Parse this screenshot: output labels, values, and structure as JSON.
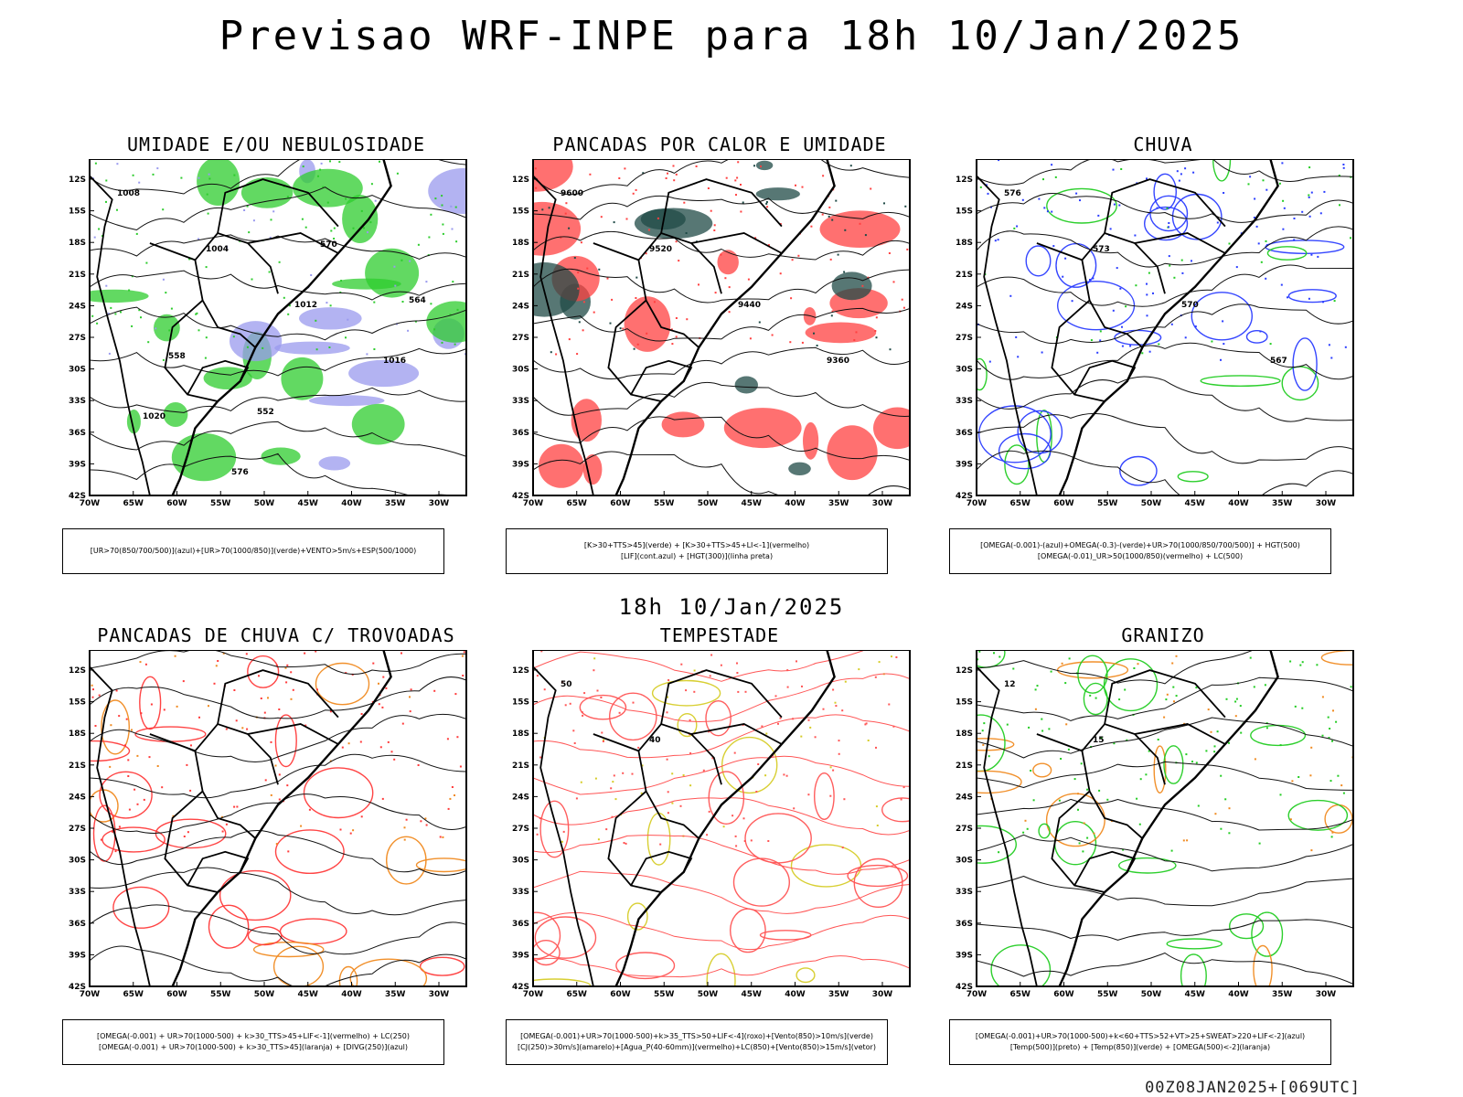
{
  "title": "Previsao WRF-INPE  para 18h 10/Jan/2025",
  "mid_title": "18h 10/Jan/2025",
  "footer": "00Z08JAN2025+[069UTC]",
  "axes": {
    "lat_labels": [
      "12S",
      "15S",
      "18S",
      "21S",
      "24S",
      "27S",
      "30S",
      "33S",
      "36S",
      "39S",
      "42S"
    ],
    "lon_labels": [
      "70W",
      "65W",
      "60W",
      "55W",
      "50W",
      "45W",
      "40W",
      "35W",
      "30W"
    ]
  },
  "panels": [
    {
      "title": "UMIDADE E/OU NEBULOSIDADE",
      "legend": [
        "[UR>70(850/700/500)](azul)+[UR>70(1000/850)](verde)+VENTO>5m/s+ESP(500/1000)"
      ],
      "contour_labels": [
        "1008",
        "1004",
        "1012",
        "1016",
        "1020",
        "576",
        "570",
        "564",
        "558",
        "552"
      ],
      "colors": {
        "primary": "#2ecc2e",
        "secondary": "#9999ee",
        "contour": "#ff3333"
      }
    },
    {
      "title": "PANCADAS POR CALOR E UMIDADE",
      "legend": [
        "[K>30+TTS>45](verde) + [K>30+TTS>45+LI<-1](vermelho)",
        "[LIF](cont.azul) + [HGT(300)](linha preta)"
      ],
      "contour_labels": [
        "9600",
        "9520",
        "9440",
        "9360"
      ],
      "colors": {
        "primary": "#ff4040",
        "secondary": "#1f4a46",
        "contour": "#3344ff"
      }
    },
    {
      "title": "CHUVA",
      "legend": [
        "[OMEGA(-0.001)-(azul)+OMEGA(-0.3)-(verde)+UR>70(1000/850/700/500)] + HGT(500)",
        "[OMEGA(-0.01)_UR>50(1000/850)(vermelho) + LC(500)"
      ],
      "contour_labels": [
        "576",
        "573",
        "570",
        "567"
      ],
      "colors": {
        "primary": "#2a3cff",
        "secondary": "#22cc22",
        "contour": "#ff3333"
      }
    },
    {
      "title": "PANCADAS DE CHUVA C/ TROVOADAS",
      "legend": [
        "[OMEGA(-0.001) + UR>70(1000-500) + k>30_TTS>45+LIF<-1](vermelho) + LC(250)",
        "[OMEGA(-0.001) + UR>70(1000-500) + k>30_TTS>45](laranja) + [DIVG(250)](azul)"
      ],
      "contour_labels": [],
      "colors": {
        "primary": "#ff3a3a",
        "secondary": "#f08a20",
        "contour": "#2a3cff"
      }
    },
    {
      "title": "TEMPESTADE",
      "legend": [
        "[OMEGA(-0.001)+UR>70(1000-500)+k>35_TTS>50+LIF<-4](roxo)+[Vento(850)>10m/s](verde)",
        "[CJ(250)>30m/s](amarelo)+[Agua_P(40-60mm)](vermelho)+LC(850)+[Vento(850)>15m/s](vetor)"
      ],
      "contour_labels": [
        "50",
        "40"
      ],
      "colors": {
        "primary": "#ff5555",
        "secondary": "#d6cc28",
        "contour": "#22aa22"
      }
    },
    {
      "title": "GRANIZO",
      "legend": [
        "[OMEGA(-0.001)+UR>70(1000-500)+k<60+TTS>52+VT>25+SWEAT>220+LIF<-2](azul)",
        "[Temp(500)](preto) + [Temp(850)](verde) + [OMEGA(500)<-2](laranja)"
      ],
      "contour_labels": [
        "12",
        "15"
      ],
      "colors": {
        "primary": "#22cc22",
        "secondary": "#f08a20",
        "contour": "#000000"
      }
    }
  ]
}
